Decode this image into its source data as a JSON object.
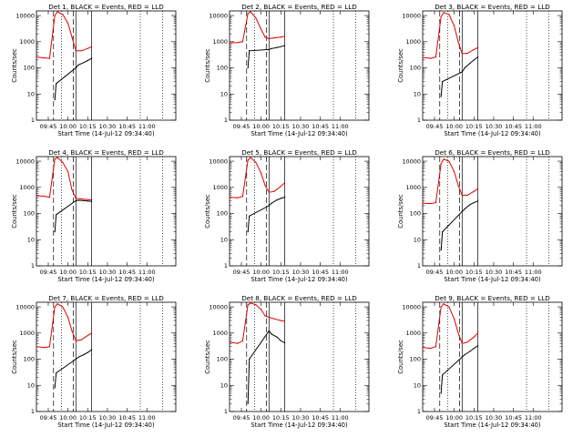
{
  "figure_colors": {
    "events": "#000000",
    "lld": "#e00000",
    "axes": "#000000",
    "background": "#ffffff"
  },
  "chart_data": [
    {
      "type": "line",
      "title": "Det 1, BLACK = Events, RED = LLD",
      "xlabel": "Start Time (14-Jul-12 09:34:40)",
      "ylabel": "Counts/sec",
      "x_unit": "time of day",
      "xlim": [
        "09:36",
        "11:22"
      ],
      "ylim": [
        1,
        15000
      ],
      "y_scale": "log",
      "x_tick_labels": [
        "09:45",
        "10:00",
        "10:15",
        "10:30",
        "10:45",
        "11:00"
      ],
      "y_tick_labels": [
        "1",
        "10",
        "100",
        "1000",
        "10000"
      ],
      "grid": false,
      "legend": "in title",
      "vlines": [
        {
          "time": "09:49",
          "style": "dashed"
        },
        {
          "time": "09:55",
          "style": "dotted"
        },
        {
          "time": "10:04",
          "style": "dashed"
        },
        {
          "time": "10:06",
          "style": "solid"
        },
        {
          "time": "10:18",
          "style": "solid"
        },
        {
          "time": "10:55",
          "style": "dotted"
        },
        {
          "time": "11:12",
          "style": "dotted"
        }
      ],
      "series": [
        {
          "color": "#e00000",
          "x": [
            "09:36",
            "09:42",
            "09:46",
            "09:50",
            "09:52",
            "09:56",
            "10:00",
            "10:03",
            "10:06",
            "10:10",
            "10:15",
            "10:18"
          ],
          "y": [
            260,
            240,
            230,
            10000,
            14000,
            11000,
            5000,
            1500,
            450,
            450,
            550,
            650
          ]
        },
        {
          "color": "#000000",
          "x": [
            "09:50",
            "09:51",
            "10:06",
            "10:08",
            "10:12",
            "10:15",
            "10:18"
          ],
          "y": [
            6,
            25,
            100,
            130,
            160,
            190,
            230
          ]
        }
      ]
    },
    {
      "type": "line",
      "title": "Det 2, BLACK = Events, RED = LLD",
      "xlabel": "Start Time (14-Jul-12 09:34:40)",
      "ylabel": "Counts/sec",
      "x_unit": "time of day",
      "xlim": [
        "09:36",
        "11:22"
      ],
      "ylim": [
        1,
        15000
      ],
      "y_scale": "log",
      "x_tick_labels": [
        "09:45",
        "10:00",
        "10:15",
        "10:30",
        "10:45",
        "11:00"
      ],
      "y_tick_labels": [
        "1",
        "10",
        "100",
        "1000",
        "10000"
      ],
      "grid": false,
      "legend": "in title",
      "vlines": [
        {
          "time": "09:49",
          "style": "dashed"
        },
        {
          "time": "09:55",
          "style": "dotted"
        },
        {
          "time": "10:04",
          "style": "dashed"
        },
        {
          "time": "10:06",
          "style": "solid"
        },
        {
          "time": "10:18",
          "style": "solid"
        },
        {
          "time": "10:55",
          "style": "dotted"
        },
        {
          "time": "11:12",
          "style": "dotted"
        }
      ],
      "series": [
        {
          "color": "#e00000",
          "x": [
            "09:36",
            "09:42",
            "09:46",
            "09:50",
            "09:52",
            "09:56",
            "10:00",
            "10:03",
            "10:06",
            "10:10",
            "10:15",
            "10:18"
          ],
          "y": [
            900,
            920,
            1000,
            12000,
            14000,
            8000,
            3000,
            1500,
            1300,
            1400,
            1500,
            1600
          ]
        },
        {
          "color": "#000000",
          "x": [
            "09:50",
            "09:51",
            "10:06",
            "10:08",
            "10:12",
            "10:15",
            "10:18"
          ],
          "y": [
            100,
            450,
            500,
            550,
            600,
            650,
            700
          ]
        }
      ]
    },
    {
      "type": "line",
      "title": "Det 3, BLACK = Events, RED = LLD",
      "xlabel": "Start Time (14-Jul-12 09:34:40)",
      "ylabel": "Counts/sec",
      "x_unit": "time of day",
      "xlim": [
        "09:36",
        "11:22"
      ],
      "ylim": [
        1,
        15000
      ],
      "y_scale": "log",
      "x_tick_labels": [
        "09:45",
        "10:00",
        "10:15",
        "10:30",
        "10:45",
        "11:00"
      ],
      "y_tick_labels": [
        "1",
        "10",
        "100",
        "1000",
        "10000"
      ],
      "grid": false,
      "legend": "in title",
      "vlines": [
        {
          "time": "09:49",
          "style": "dashed"
        },
        {
          "time": "09:55",
          "style": "dotted"
        },
        {
          "time": "10:04",
          "style": "dashed"
        },
        {
          "time": "10:06",
          "style": "solid"
        },
        {
          "time": "10:18",
          "style": "solid"
        },
        {
          "time": "10:55",
          "style": "dotted"
        },
        {
          "time": "11:12",
          "style": "dotted"
        }
      ],
      "series": [
        {
          "color": "#e00000",
          "x": [
            "09:36",
            "09:42",
            "09:46",
            "09:50",
            "09:52",
            "09:56",
            "10:00",
            "10:03",
            "10:06",
            "10:10",
            "10:15",
            "10:18"
          ],
          "y": [
            250,
            230,
            260,
            9000,
            13000,
            11000,
            4000,
            1000,
            350,
            360,
            500,
            600
          ]
        },
        {
          "color": "#000000",
          "x": [
            "09:50",
            "09:51",
            "10:06",
            "10:08",
            "10:12",
            "10:15",
            "10:18"
          ],
          "y": [
            8,
            30,
            70,
            100,
            150,
            200,
            260
          ]
        }
      ]
    },
    {
      "type": "line",
      "title": "Det 4, BLACK = Events, RED = LLD",
      "xlabel": "Start Time (14-Jul-12 09:34:40)",
      "ylabel": "Counts/sec",
      "x_unit": "time of day",
      "xlim": [
        "09:36",
        "11:22"
      ],
      "ylim": [
        1,
        15000
      ],
      "y_scale": "log",
      "x_tick_labels": [
        "09:45",
        "10:00",
        "10:15",
        "10:30",
        "10:45",
        "11:00"
      ],
      "y_tick_labels": [
        "1",
        "10",
        "100",
        "1000",
        "10000"
      ],
      "grid": false,
      "legend": "in title",
      "vlines": [
        {
          "time": "09:49",
          "style": "dashed"
        },
        {
          "time": "09:55",
          "style": "dotted"
        },
        {
          "time": "10:04",
          "style": "dashed"
        },
        {
          "time": "10:06",
          "style": "solid"
        },
        {
          "time": "10:18",
          "style": "solid"
        },
        {
          "time": "10:55",
          "style": "dotted"
        },
        {
          "time": "11:12",
          "style": "dotted"
        }
      ],
      "series": [
        {
          "color": "#e00000",
          "x": [
            "09:36",
            "09:42",
            "09:46",
            "09:50",
            "09:52",
            "09:56",
            "10:00",
            "10:03",
            "10:06",
            "10:10",
            "10:15",
            "10:18"
          ],
          "y": [
            480,
            460,
            420,
            12000,
            14000,
            9000,
            4000,
            800,
            380,
            360,
            340,
            330
          ]
        },
        {
          "color": "#000000",
          "x": [
            "09:50",
            "09:51",
            "10:06",
            "10:08",
            "10:12",
            "10:15",
            "10:18"
          ],
          "y": [
            20,
            90,
            310,
            320,
            310,
            300,
            290
          ]
        }
      ]
    },
    {
      "type": "line",
      "title": "Det 5, BLACK = Events, RED = LLD",
      "xlabel": "Start Time (14-Jul-12 09:34:40)",
      "ylabel": "Counts/sec",
      "x_unit": "time of day",
      "xlim": [
        "09:36",
        "11:22"
      ],
      "ylim": [
        1,
        15000
      ],
      "y_scale": "log",
      "x_tick_labels": [
        "09:45",
        "10:00",
        "10:15",
        "10:30",
        "10:45",
        "11:00"
      ],
      "y_tick_labels": [
        "1",
        "10",
        "100",
        "1000",
        "10000"
      ],
      "grid": false,
      "legend": "in title",
      "vlines": [
        {
          "time": "09:49",
          "style": "dashed"
        },
        {
          "time": "09:55",
          "style": "dotted"
        },
        {
          "time": "10:04",
          "style": "dashed"
        },
        {
          "time": "10:06",
          "style": "solid"
        },
        {
          "time": "10:18",
          "style": "solid"
        },
        {
          "time": "10:55",
          "style": "dotted"
        },
        {
          "time": "11:12",
          "style": "dotted"
        }
      ],
      "series": [
        {
          "color": "#e00000",
          "x": [
            "09:36",
            "09:42",
            "09:46",
            "09:50",
            "09:52",
            "09:56",
            "10:00",
            "10:03",
            "10:06",
            "10:10",
            "10:15",
            "10:18"
          ],
          "y": [
            420,
            400,
            450,
            11000,
            14000,
            9000,
            3500,
            1200,
            650,
            700,
            1100,
            1500
          ]
        },
        {
          "color": "#000000",
          "x": [
            "09:50",
            "09:51",
            "10:06",
            "10:08",
            "10:12",
            "10:15",
            "10:18"
          ],
          "y": [
            20,
            80,
            200,
            250,
            330,
            380,
            420
          ]
        }
      ]
    },
    {
      "type": "line",
      "title": "Det 6, BLACK = Events, RED = LLD",
      "xlabel": "Start Time (14-Jul-12 09:34:40)",
      "ylabel": "Counts/sec",
      "x_unit": "time of day",
      "xlim": [
        "09:36",
        "11:22"
      ],
      "ylim": [
        1,
        15000
      ],
      "y_scale": "log",
      "x_tick_labels": [
        "09:45",
        "10:00",
        "10:15",
        "10:30",
        "10:45",
        "11:00"
      ],
      "y_tick_labels": [
        "1",
        "10",
        "100",
        "1000",
        "10000"
      ],
      "grid": false,
      "legend": "in title",
      "vlines": [
        {
          "time": "09:49",
          "style": "dashed"
        },
        {
          "time": "09:55",
          "style": "dotted"
        },
        {
          "time": "10:04",
          "style": "dashed"
        },
        {
          "time": "10:06",
          "style": "solid"
        },
        {
          "time": "10:18",
          "style": "solid"
        },
        {
          "time": "10:55",
          "style": "dotted"
        },
        {
          "time": "11:12",
          "style": "dotted"
        }
      ],
      "series": [
        {
          "color": "#e00000",
          "x": [
            "09:36",
            "09:42",
            "09:46",
            "09:50",
            "09:52",
            "09:56",
            "10:00",
            "10:03",
            "10:06",
            "10:10",
            "10:15",
            "10:18"
          ],
          "y": [
            250,
            240,
            260,
            8000,
            12000,
            10000,
            4000,
            1200,
            500,
            500,
            700,
            900
          ]
        },
        {
          "color": "#000000",
          "x": [
            "09:50",
            "09:51",
            "10:06",
            "10:08",
            "10:12",
            "10:15",
            "10:18"
          ],
          "y": [
            4,
            20,
            120,
            150,
            220,
            260,
            300
          ]
        }
      ]
    },
    {
      "type": "line",
      "title": "Det 7, BLACK = Events, RED = LLD",
      "xlabel": "Start Time (14-Jul-12 09:34:40)",
      "ylabel": "Counts/sec",
      "x_unit": "time of day",
      "xlim": [
        "09:36",
        "11:22"
      ],
      "ylim": [
        1,
        15000
      ],
      "y_scale": "log",
      "x_tick_labels": [
        "09:45",
        "10:00",
        "10:15",
        "10:30",
        "10:45",
        "11:00"
      ],
      "y_tick_labels": [
        "1",
        "10",
        "100",
        "1000",
        "10000"
      ],
      "grid": false,
      "legend": "in title",
      "vlines": [
        {
          "time": "09:49",
          "style": "dashed"
        },
        {
          "time": "09:55",
          "style": "dotted"
        },
        {
          "time": "10:04",
          "style": "dashed"
        },
        {
          "time": "10:06",
          "style": "solid"
        },
        {
          "time": "10:18",
          "style": "solid"
        },
        {
          "time": "10:55",
          "style": "dotted"
        },
        {
          "time": "11:12",
          "style": "dotted"
        }
      ],
      "series": [
        {
          "color": "#e00000",
          "x": [
            "09:36",
            "09:42",
            "09:46",
            "09:50",
            "09:52",
            "09:56",
            "10:00",
            "10:03",
            "10:06",
            "10:10",
            "10:15",
            "10:18"
          ],
          "y": [
            300,
            280,
            300,
            10000,
            13000,
            10000,
            4000,
            1200,
            500,
            550,
            800,
            1000
          ]
        },
        {
          "color": "#000000",
          "x": [
            "09:50",
            "09:51",
            "10:06",
            "10:08",
            "10:12",
            "10:15",
            "10:18"
          ],
          "y": [
            8,
            30,
            100,
            120,
            150,
            180,
            230
          ]
        }
      ]
    },
    {
      "type": "line",
      "title": "Det 8, BLACK = Events, RED = LLD",
      "xlabel": "Start Time (14-Jul-12 09:34:40)",
      "ylabel": "Counts/sec",
      "x_unit": "time of day",
      "xlim": [
        "09:36",
        "11:22"
      ],
      "ylim": [
        1,
        15000
      ],
      "y_scale": "log",
      "x_tick_labels": [
        "09:45",
        "10:00",
        "10:15",
        "10:30",
        "10:45",
        "11:00"
      ],
      "y_tick_labels": [
        "1",
        "10",
        "100",
        "1000",
        "10000"
      ],
      "grid": false,
      "legend": "in title",
      "vlines": [
        {
          "time": "09:49",
          "style": "dashed"
        },
        {
          "time": "09:55",
          "style": "dotted"
        },
        {
          "time": "10:04",
          "style": "dashed"
        },
        {
          "time": "10:06",
          "style": "solid"
        },
        {
          "time": "10:18",
          "style": "solid"
        },
        {
          "time": "10:55",
          "style": "dotted"
        },
        {
          "time": "11:12",
          "style": "dotted"
        }
      ],
      "series": [
        {
          "color": "#e00000",
          "x": [
            "09:36",
            "09:42",
            "09:46",
            "09:50",
            "09:52",
            "09:56",
            "10:00",
            "10:03",
            "10:06",
            "10:10",
            "10:15",
            "10:18"
          ],
          "y": [
            450,
            400,
            500,
            12000,
            14000,
            12000,
            8000,
            4500,
            4000,
            3500,
            3000,
            2800
          ]
        },
        {
          "color": "#000000",
          "x": [
            "09:50",
            "09:51",
            "10:06",
            "10:08",
            "10:12",
            "10:15",
            "10:18"
          ],
          "y": [
            2,
            100,
            1200,
            900,
            700,
            500,
            420
          ]
        }
      ]
    },
    {
      "type": "line",
      "title": "Det 9, BLACK = Events, RED = LLD",
      "xlabel": "Start Time (14-Jul-12 09:34:40)",
      "ylabel": "Counts/sec",
      "x_unit": "time of day",
      "xlim": [
        "09:36",
        "11:22"
      ],
      "ylim": [
        1,
        15000
      ],
      "y_scale": "log",
      "x_tick_labels": [
        "09:45",
        "10:00",
        "10:15",
        "10:30",
        "10:45",
        "11:00"
      ],
      "y_tick_labels": [
        "1",
        "10",
        "100",
        "1000",
        "10000"
      ],
      "grid": false,
      "legend": "in title",
      "vlines": [
        {
          "time": "09:49",
          "style": "dashed"
        },
        {
          "time": "09:55",
          "style": "dotted"
        },
        {
          "time": "10:04",
          "style": "dashed"
        },
        {
          "time": "10:06",
          "style": "solid"
        },
        {
          "time": "10:18",
          "style": "solid"
        },
        {
          "time": "10:55",
          "style": "dotted"
        },
        {
          "time": "11:12",
          "style": "dotted"
        }
      ],
      "series": [
        {
          "color": "#e00000",
          "x": [
            "09:36",
            "09:42",
            "09:46",
            "09:50",
            "09:52",
            "09:56",
            "10:00",
            "10:03",
            "10:06",
            "10:10",
            "10:15",
            "10:18"
          ],
          "y": [
            280,
            260,
            300,
            10000,
            13000,
            10000,
            3500,
            1000,
            400,
            450,
            700,
            1000
          ]
        },
        {
          "color": "#000000",
          "x": [
            "09:50",
            "09:51",
            "10:06",
            "10:08",
            "10:12",
            "10:15",
            "10:18"
          ],
          "y": [
            5,
            25,
            120,
            150,
            200,
            260,
            330
          ]
        }
      ]
    }
  ]
}
